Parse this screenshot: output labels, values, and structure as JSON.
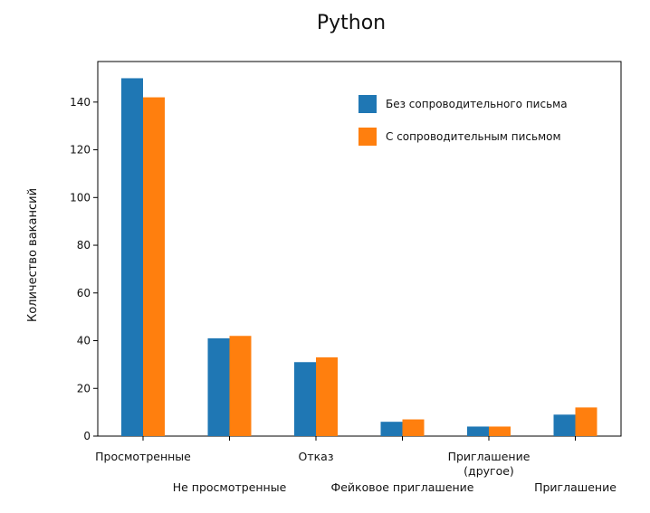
{
  "chart_data": {
    "type": "bar",
    "title": "Python",
    "xlabel": "",
    "ylabel": "Количество вакансий",
    "ylim": [
      0,
      157
    ],
    "yticks": [
      0,
      20,
      40,
      60,
      80,
      100,
      120,
      140
    ],
    "grid": false,
    "legend_position": "top-right",
    "categories": [
      [
        "Просмотренные"
      ],
      [
        "Не просмотренные"
      ],
      [
        "Отказ"
      ],
      [
        "Фейковое приглашение"
      ],
      [
        "Приглашение",
        "(другое)"
      ],
      [
        "Приглашение"
      ]
    ],
    "series": [
      {
        "name": "Без сопроводительного письма",
        "color": "#1f77b4",
        "values": [
          150,
          41,
          31,
          6,
          4,
          9
        ]
      },
      {
        "name": "С сопроводительным письмом",
        "color": "#ff7f0e",
        "values": [
          142,
          42,
          33,
          7,
          4,
          12
        ]
      }
    ]
  }
}
